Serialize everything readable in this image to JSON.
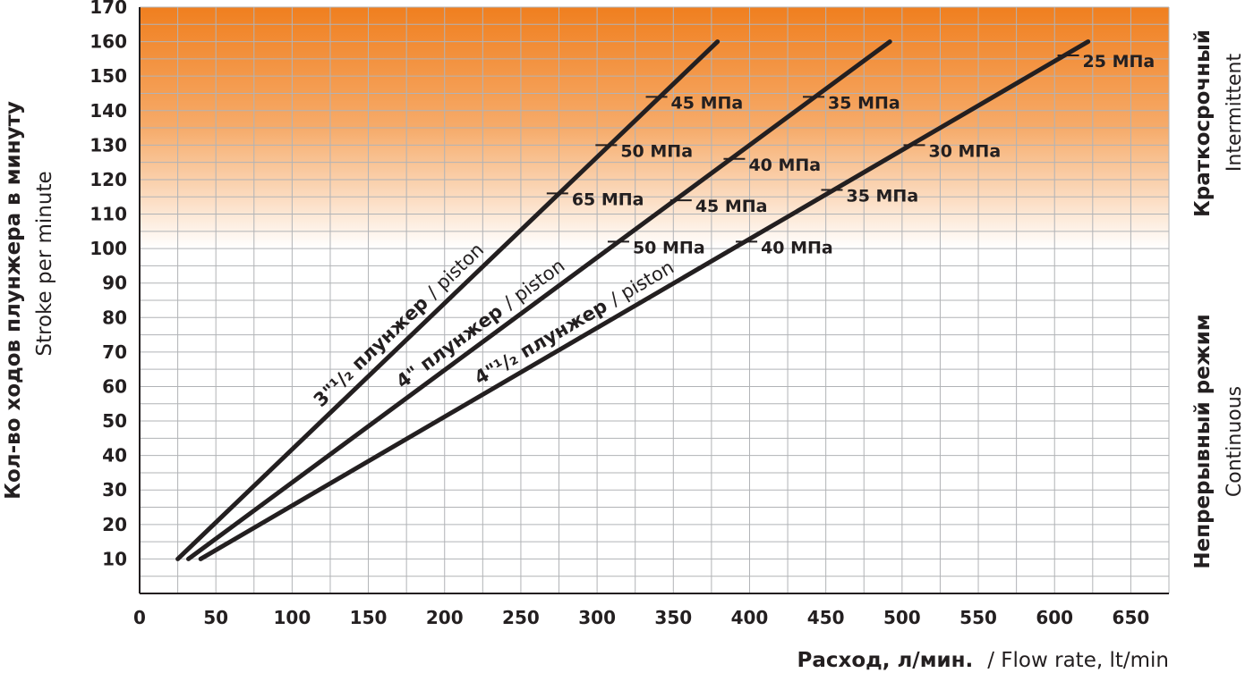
{
  "chart_data": {
    "type": "line",
    "x_axis": {
      "label_main": "Расход, л/мин.",
      "label_sub": "/ Flow rate, lt/min",
      "range": [
        0,
        675
      ],
      "ticks": [
        0,
        50,
        100,
        150,
        200,
        250,
        300,
        350,
        400,
        450,
        500,
        550,
        600,
        650
      ],
      "minor_step": 25
    },
    "y_axis": {
      "label_main": "Кол-во ходов плунжера в минуту",
      "label_sub": "Stroke per minute",
      "range": [
        0,
        170
      ],
      "ticks": [
        10,
        20,
        30,
        40,
        50,
        60,
        70,
        80,
        90,
        100,
        110,
        120,
        130,
        140,
        150,
        160,
        170
      ],
      "minor_step": 5
    },
    "grid": true,
    "zones": [
      {
        "name_main": "Краткосрочный",
        "name_sub": "Intermittent",
        "y_from": 100,
        "y_to": 170,
        "color_top": "#f07f1f",
        "color_bottom": "#ffffff"
      },
      {
        "name_main": "Непрерывный режим",
        "name_sub": "Continuous",
        "y_from": 0,
        "y_to": 100
      }
    ],
    "series": [
      {
        "label_main": "3\"¹/₂ плунжер",
        "label_sub": "/ piston",
        "x": [
          25,
          379
        ],
        "y": [
          10,
          160
        ],
        "pressure_marks": [
          {
            "x": 274,
            "y": 116,
            "label": "65 МПа"
          },
          {
            "x": 306,
            "y": 130,
            "label": "50 МПа"
          },
          {
            "x": 339,
            "y": 144,
            "label": "45 МПа"
          }
        ]
      },
      {
        "label_main": "4\" плунжер",
        "label_sub": "/ piston",
        "x": [
          32,
          492
        ],
        "y": [
          10,
          160
        ],
        "pressure_marks": [
          {
            "x": 314,
            "y": 102,
            "label": "50 МПа"
          },
          {
            "x": 355,
            "y": 114,
            "label": "45 МПа"
          },
          {
            "x": 390,
            "y": 126,
            "label": "40 МПа"
          },
          {
            "x": 442,
            "y": 144,
            "label": "35 МПа"
          }
        ]
      },
      {
        "label_main": "4\"¹/₂ плунжер",
        "label_sub": "/ piston",
        "x": [
          40,
          622
        ],
        "y": [
          10,
          160
        ],
        "pressure_marks": [
          {
            "x": 398,
            "y": 102,
            "label": "40 МПа"
          },
          {
            "x": 454,
            "y": 117,
            "label": "35 МПа"
          },
          {
            "x": 508,
            "y": 130,
            "label": "30 МПа"
          },
          {
            "x": 609,
            "y": 156,
            "label": "25 МПа"
          }
        ]
      }
    ]
  },
  "colors": {
    "line": "#231f20",
    "grid": "#b1b3b6",
    "accent": "#f07f1f"
  }
}
